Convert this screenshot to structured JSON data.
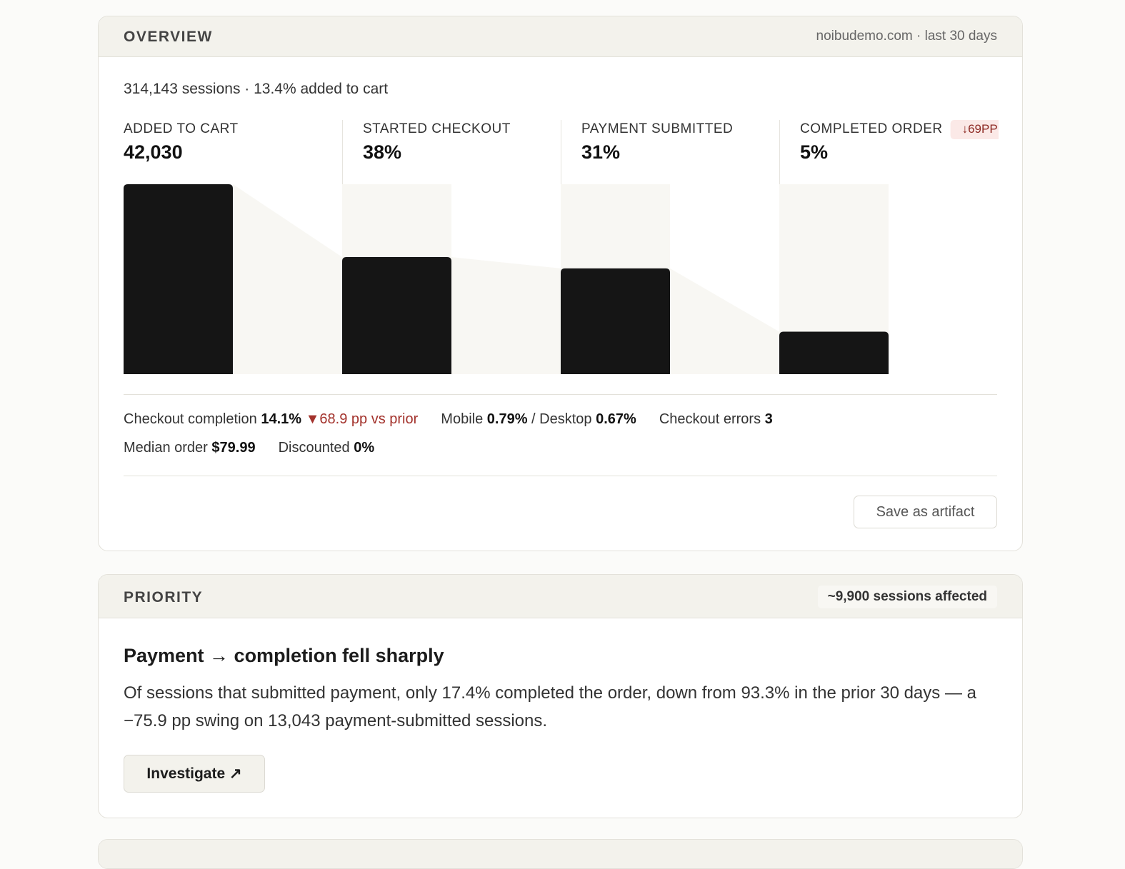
{
  "overview": {
    "title": "OVERVIEW",
    "meta": "noibudemo.com · last 30 days",
    "summary": "314,143 sessions · 13.4% added to cart",
    "chart_data": {
      "type": "funnel",
      "scale": "sqrt",
      "ylim": [
        0,
        100
      ],
      "color": "#151515",
      "track_color": "#f8f7f3",
      "stages": [
        {
          "name": "ADDED TO CART",
          "headline": "42,030",
          "value": 100
        },
        {
          "name": "STARTED CHECKOUT",
          "headline": "38%",
          "value": 38
        },
        {
          "name": "PAYMENT SUBMITTED",
          "headline": "31%",
          "value": 31
        },
        {
          "name": "COMPLETED ORDER",
          "headline": "5%",
          "value": 5,
          "badge": "↓69PP"
        }
      ]
    },
    "stats": [
      [
        [
          {
            "label": "Checkout completion",
            "value": "14.1%",
            "delta": "▼68.9 pp vs prior"
          }
        ],
        [
          {
            "label": "Mobile",
            "value": "0.79%"
          },
          {
            "label": "/ Desktop",
            "value": "0.67%"
          }
        ],
        [
          {
            "label": "Checkout errors",
            "value": "3"
          }
        ]
      ],
      [
        [
          {
            "label": "Median order",
            "value": "$79.99"
          }
        ],
        [
          {
            "label": "Discounted",
            "value": "0%"
          }
        ]
      ]
    ],
    "button": "Save as artifact"
  },
  "priority": {
    "title": "PRIORITY",
    "badge": "~9,900 sessions affected",
    "heading": "Payment → completion fell sharply",
    "body": "Of sessions that submitted payment, only 17.4% completed the order, down from 93.3% in the prior 30 days — a −75.9 pp swing on 13,043 payment-submitted sessions.",
    "button": "Investigate ↗"
  }
}
